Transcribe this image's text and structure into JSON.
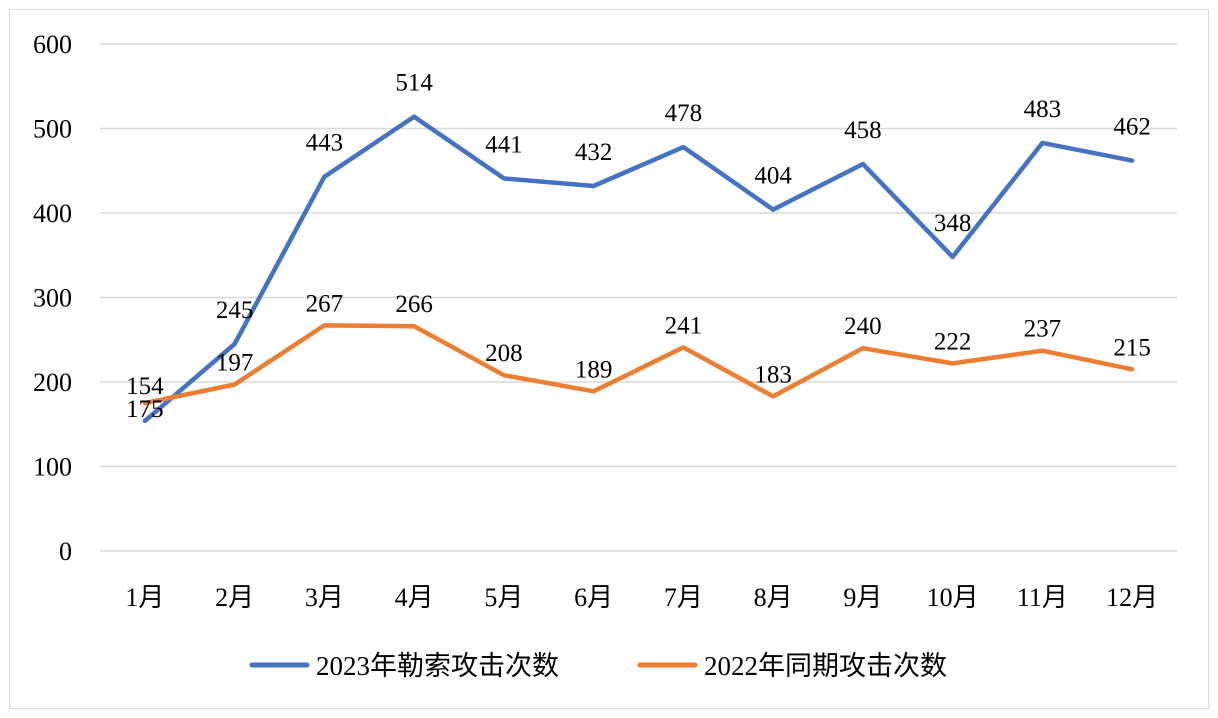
{
  "chart_data": {
    "type": "line",
    "title": "",
    "xlabel": "",
    "ylabel": "",
    "ylim": [
      0,
      600
    ],
    "yticks": [
      "0",
      "100",
      "200",
      "300",
      "400",
      "500",
      "600"
    ],
    "grid": true,
    "legend_position": "bottom",
    "categories": [
      "1月",
      "2月",
      "3月",
      "4月",
      "5月",
      "6月",
      "7月",
      "8月",
      "9月",
      "10月",
      "11月",
      "12月"
    ],
    "series": [
      {
        "name": "2023年勒索攻击次数",
        "color": "#4472C4",
        "values": [
          154,
          245,
          443,
          514,
          441,
          432,
          478,
          404,
          458,
          348,
          483,
          462
        ]
      },
      {
        "name": "2022年同期攻击次数",
        "color": "#ED7D31",
        "values": [
          175,
          197,
          267,
          266,
          208,
          189,
          241,
          183,
          240,
          222,
          237,
          215
        ]
      }
    ]
  }
}
